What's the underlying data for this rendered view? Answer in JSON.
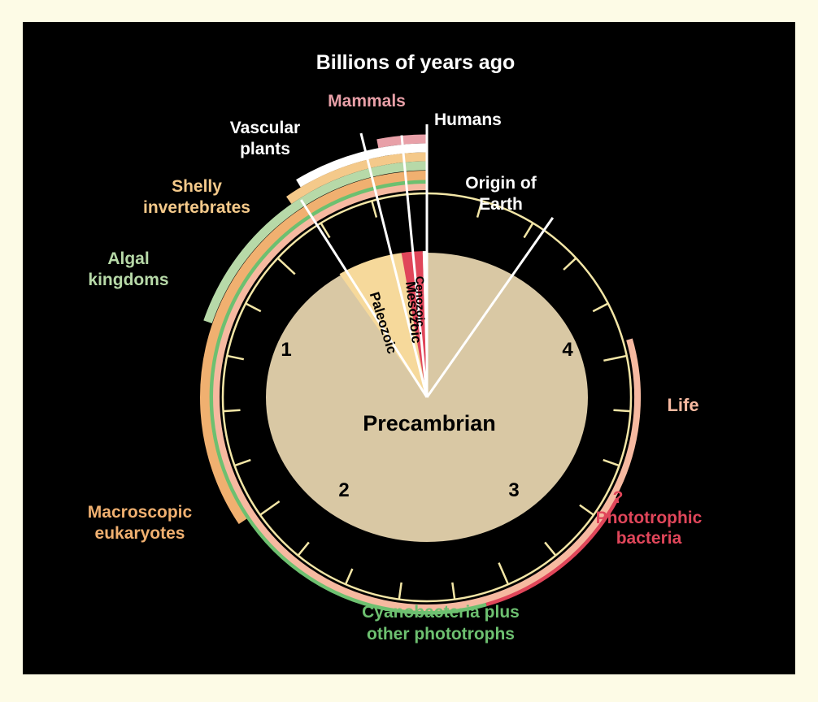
{
  "title": "Billions of years ago",
  "center_label": "Precambrian",
  "dial_numbers": [
    "1",
    "2",
    "3",
    "4"
  ],
  "eras": [
    {
      "label": "Paleozoic",
      "color": "#f6d99b"
    },
    {
      "label": "Mesozoic",
      "color": "#e0465a"
    },
    {
      "label": "Cenozoic",
      "color": "#ffffff"
    }
  ],
  "events": [
    {
      "label_lines": [
        "Humans"
      ],
      "color": "#ffffff"
    },
    {
      "label_lines": [
        "Mammals"
      ],
      "color": "#e8a0a8"
    },
    {
      "label_lines": [
        "Vascular",
        "plants"
      ],
      "color": "#ffffff"
    },
    {
      "label_lines": [
        "Shelly",
        "invertebrates"
      ],
      "color": "#f4c98a"
    },
    {
      "label_lines": [
        "Algal",
        "kingdoms"
      ],
      "color": "#b7d9a8"
    },
    {
      "label_lines": [
        "Macroscopic",
        "eukaryotes"
      ],
      "color": "#f0b070"
    },
    {
      "label_lines": [
        "Cyanobacteria plus",
        "other phototrophs"
      ],
      "color": "#6dc070"
    },
    {
      "label_lines": [
        "?",
        "Phototrophic",
        "bacteria"
      ],
      "color": "#e0465a"
    },
    {
      "label_lines": [
        "Life"
      ],
      "color": "#f6b9a0"
    },
    {
      "label_lines": [
        "Origin of",
        "Earth"
      ],
      "color": "#ffffff"
    }
  ],
  "colors": {
    "background": "#000000",
    "page": "#fdfbe6",
    "dial_ring": "#f3e6a6",
    "precambrian_fill": "#d9c8a4"
  }
}
